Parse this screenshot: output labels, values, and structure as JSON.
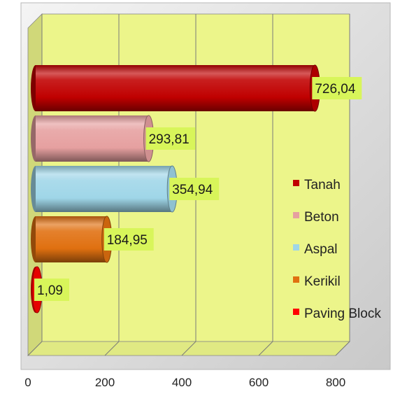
{
  "chart_data": {
    "type": "bar",
    "orientation": "horizontal",
    "style": "3d-cylinder",
    "title": "",
    "xlabel": "",
    "ylabel": "",
    "xlim": [
      0,
      800
    ],
    "x_ticks": [
      "0",
      "200",
      "400",
      "600",
      "800"
    ],
    "grid": true,
    "legend_placement": "right",
    "categories": [
      "Tanah",
      "Beton",
      "Aspal",
      "Kerikil",
      "Paving Block"
    ],
    "values": [
      726.04,
      293.81,
      354.94,
      184.95,
      1.09
    ],
    "value_labels": [
      "726,04",
      "293,81",
      "354,94",
      "184,95",
      "1,09"
    ],
    "colors": [
      "#c00000",
      "#e6a0a0",
      "#9fd6e8",
      "#e07010",
      "#ff0000"
    ],
    "legend_colors": [
      "#c00000",
      "#e6a0a0",
      "#9fd6e8",
      "#e07010",
      "#ff0000"
    ],
    "plot_background": "#ecf58a",
    "label_background": "#d8f55a"
  }
}
